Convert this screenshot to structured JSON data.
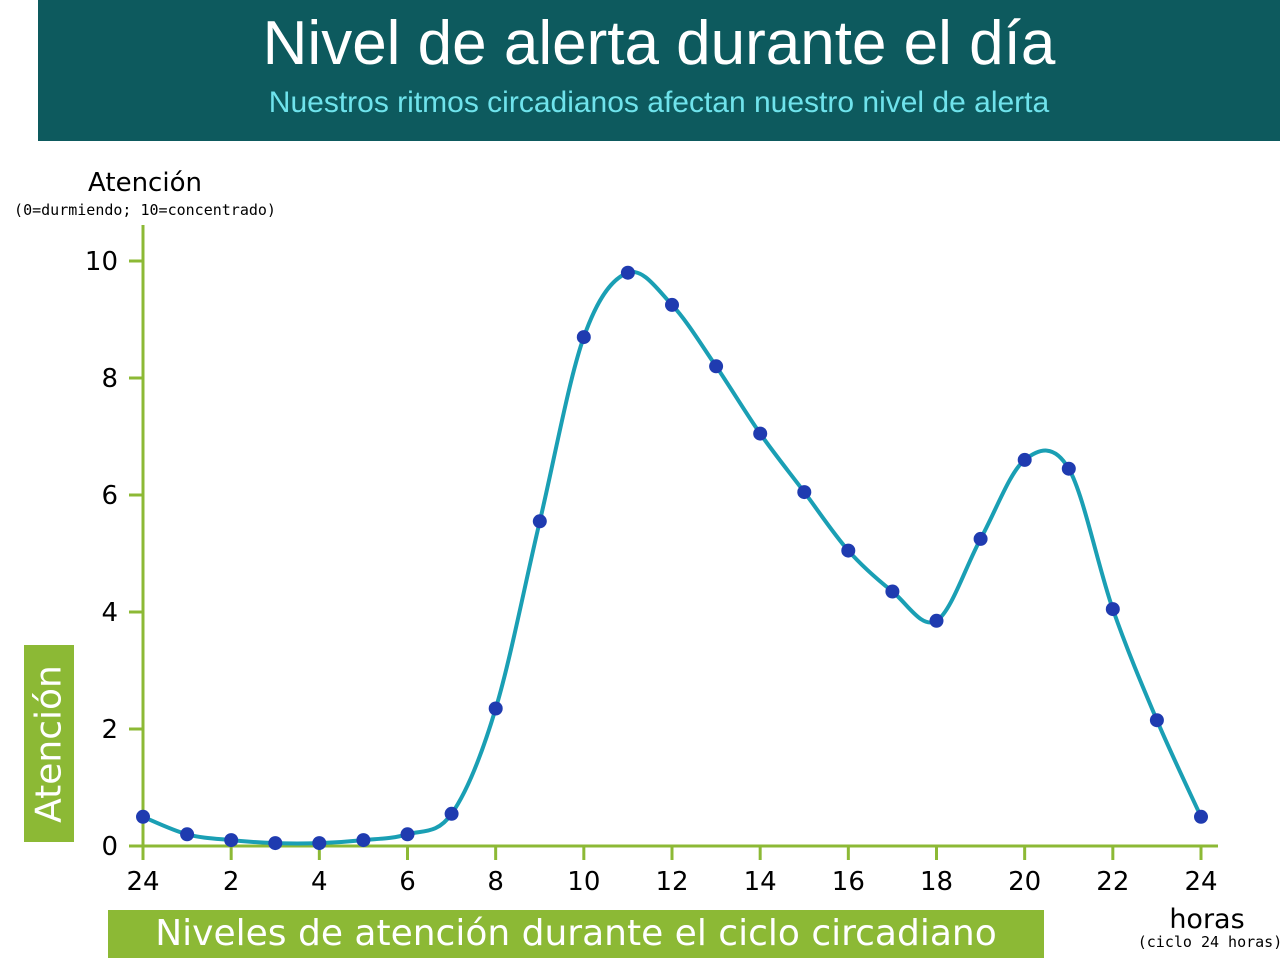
{
  "header": {
    "title": "Nivel de alerta durante el día",
    "subtitle": "Nuestros ritmos circadianos afectan nuestro nivel de alerta"
  },
  "side_label": "Atención",
  "bottom_label": "Niveles de atención durante el ciclo circadiano",
  "colors": {
    "header_bg": "#0d5a5e",
    "subtitle": "#6fe3ec",
    "axis": "#8cb935",
    "curve": "#1a9fb4",
    "points": "#1f3bb0",
    "badge_bg": "#8cb935"
  },
  "chart_data": {
    "type": "line",
    "ylabel": "Atención",
    "ylabel_note": "(0=durmiendo; 10=concentrado)",
    "xlabel": "horas",
    "xlabel_note": "(ciclo 24 horas)",
    "ylim": [
      0,
      10
    ],
    "xlim": [
      0,
      24
    ],
    "yticks": [
      0,
      2,
      4,
      6,
      8,
      10
    ],
    "xticks": [
      0,
      2,
      4,
      6,
      8,
      10,
      12,
      14,
      16,
      18,
      20,
      22,
      24
    ],
    "xtick_labels": [
      "24",
      "2",
      "4",
      "6",
      "8",
      "10",
      "12",
      "14",
      "16",
      "18",
      "20",
      "22",
      "24"
    ],
    "grid": false,
    "series": [
      {
        "x": [
          0,
          1,
          2,
          3,
          4,
          5,
          6,
          7,
          8,
          9,
          10,
          11,
          12,
          13,
          14,
          15,
          16,
          17,
          18,
          19,
          20,
          21,
          22,
          23,
          24
        ],
        "values": [
          0.5,
          0.2,
          0.1,
          0.05,
          0.05,
          0.1,
          0.2,
          0.55,
          2.35,
          5.55,
          8.7,
          9.8,
          9.25,
          8.2,
          7.05,
          6.05,
          5.05,
          4.35,
          3.85,
          5.25,
          6.6,
          6.45,
          4.05,
          2.15,
          0.5
        ]
      }
    ]
  }
}
